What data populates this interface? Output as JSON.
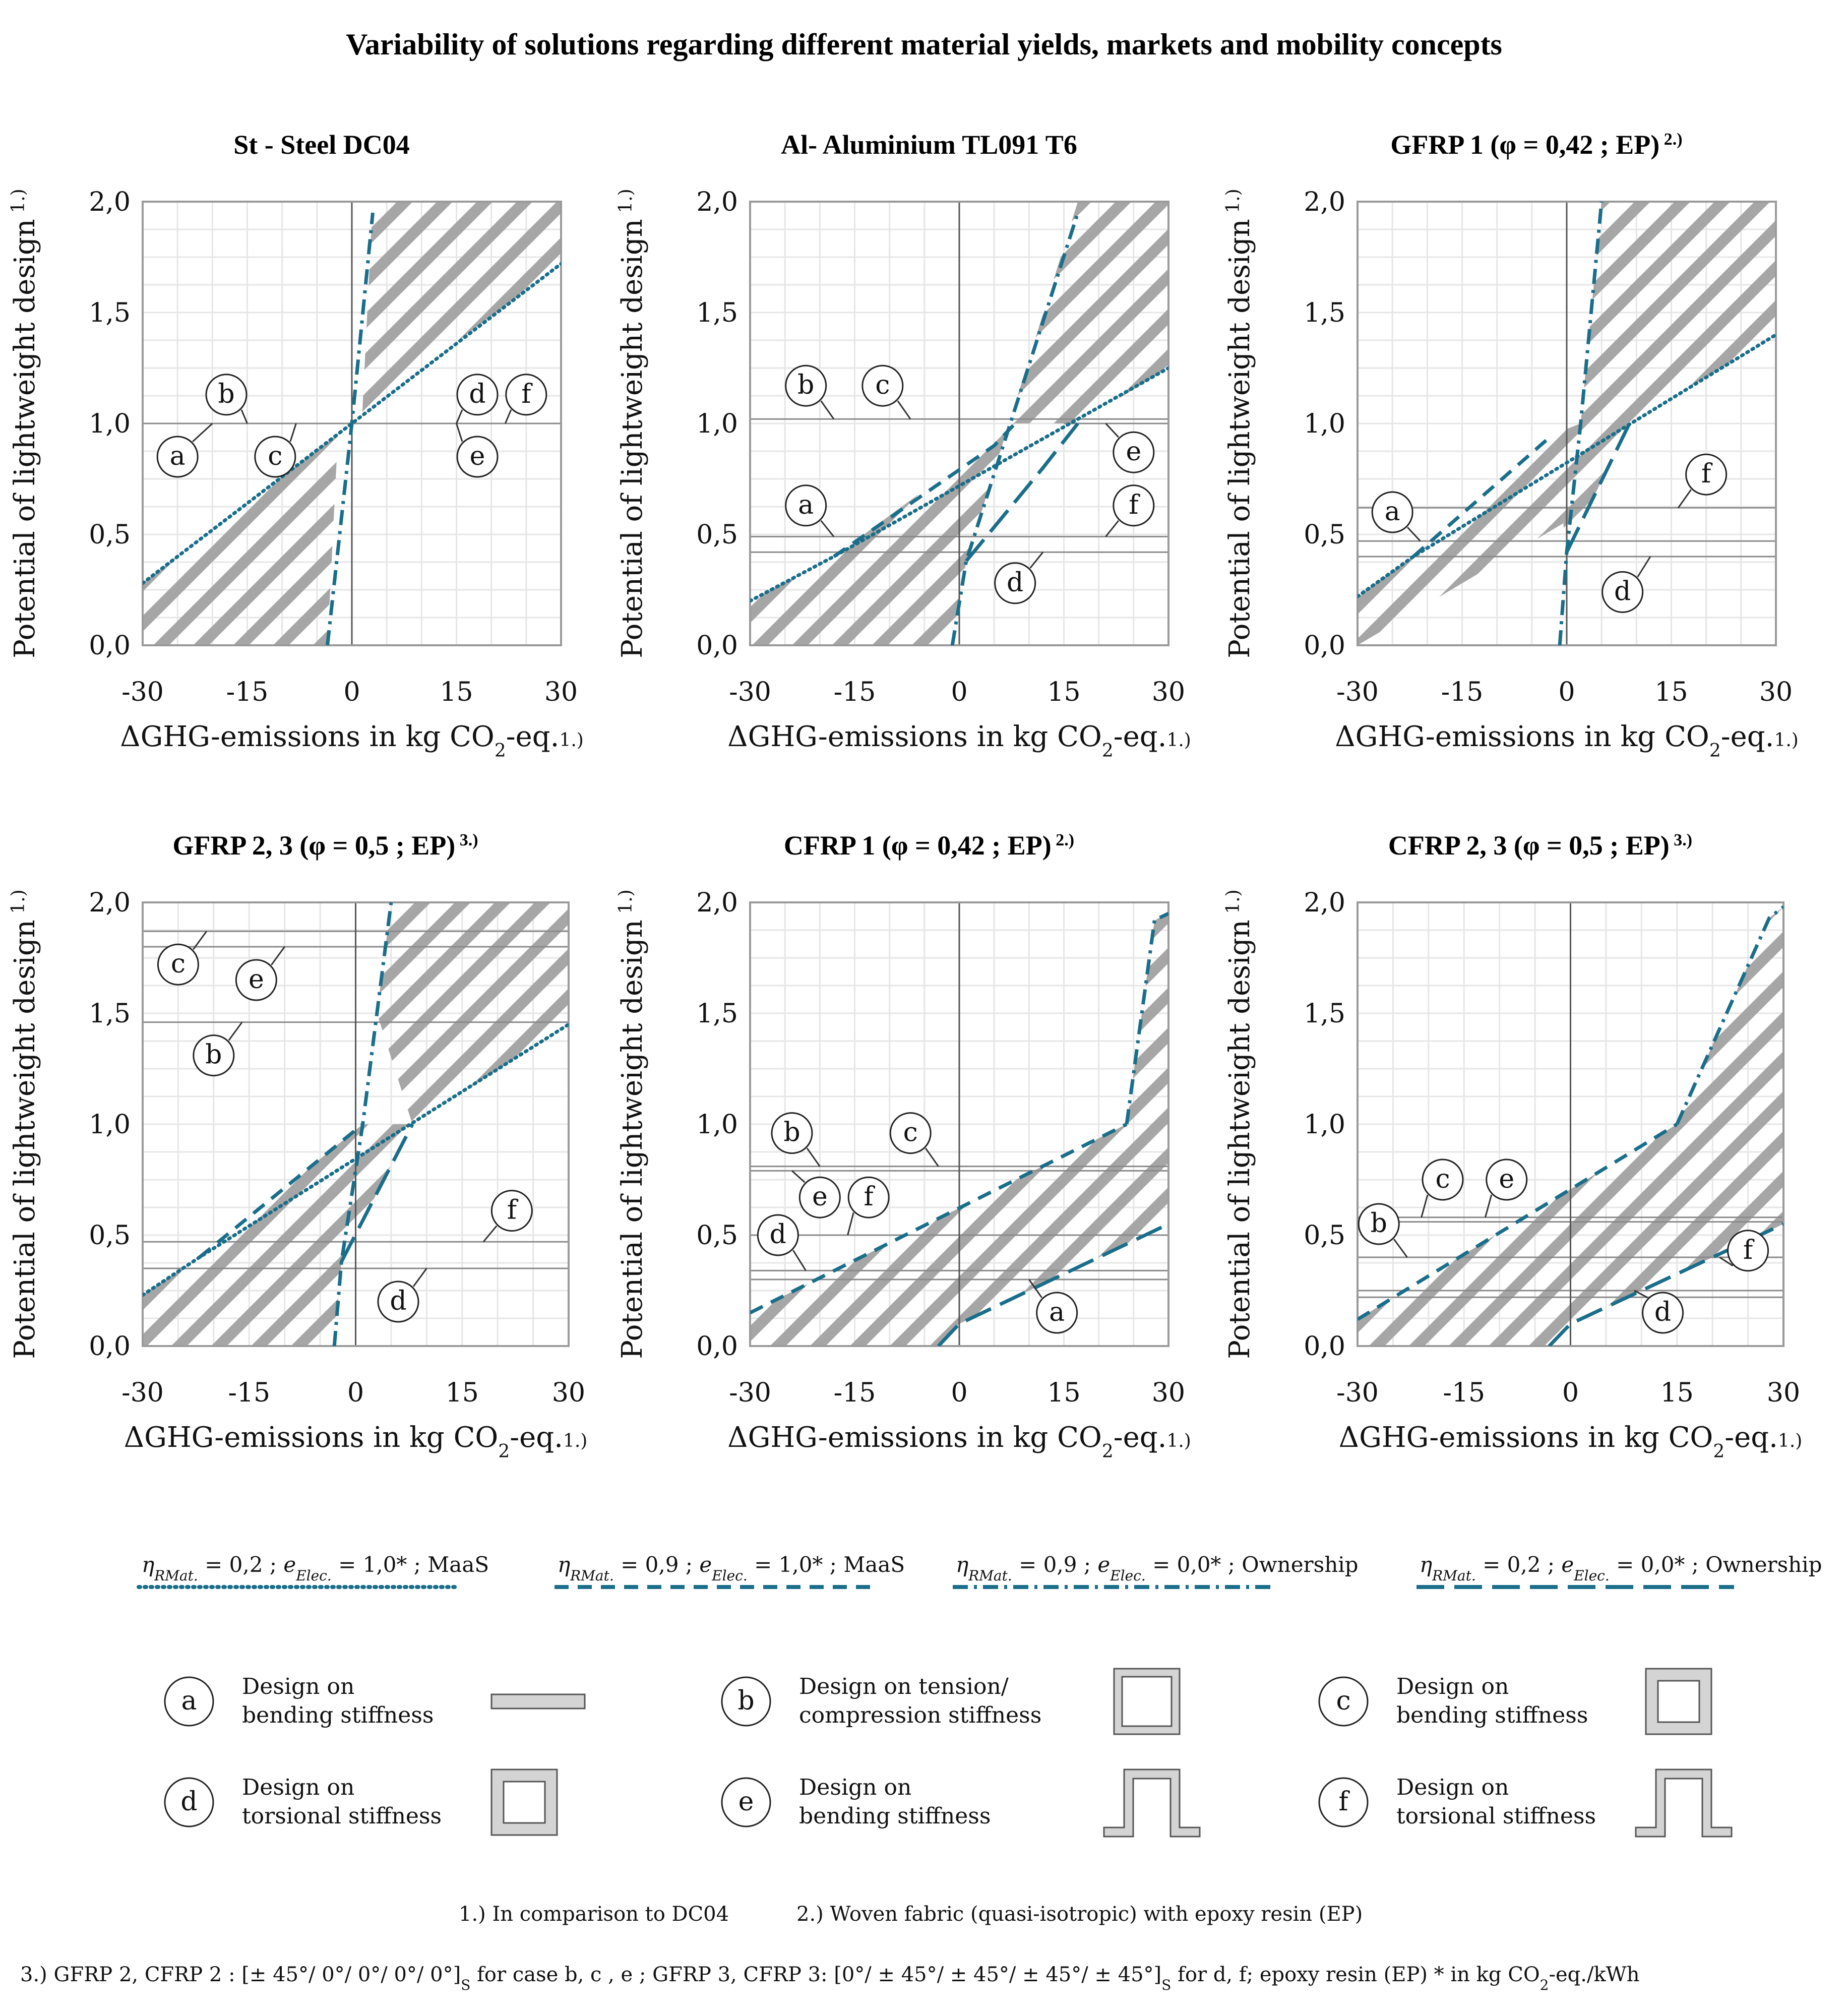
{
  "title": "Variability of solutions regarding different material yields, markets and mobility concepts",
  "axis": {
    "xlabel": "ΔGHG-emissions in kg CO",
    "xlabel_sub": "2",
    "xlabel_tail": "-eq.",
    "xlabel_sup": "1.)",
    "ylabel": "Potential of lightweight design",
    "ylabel_sup": "1.)",
    "xticks": [
      "-30",
      "-15",
      "0",
      "15",
      "30"
    ],
    "yticks": [
      "0,0",
      "0,5",
      "1,0",
      "1,5",
      "2,0"
    ]
  },
  "legend_lines": [
    {
      "eta": "η",
      "eta_sub": "RMat.",
      "mid": " = 0,2 ; ",
      "e": "e",
      "e_sub": "Elec.",
      "tail": " = 1,0* ; MaaS",
      "style": "dotted"
    },
    {
      "eta": "η",
      "eta_sub": "RMat.",
      "mid": " = 0,9 ; ",
      "e": "e",
      "e_sub": "Elec.",
      "tail": " = 1,0* ; MaaS",
      "style": "dashed"
    },
    {
      "eta": "η",
      "eta_sub": "RMat.",
      "mid": " = 0,9 ; ",
      "e": "e",
      "e_sub": "Elec.",
      "tail": " = 0,0* ; Ownership",
      "style": "dashdot"
    },
    {
      "eta": "η",
      "eta_sub": "RMat.",
      "mid": " = 0,2 ; ",
      "e": "e",
      "e_sub": "Elec.",
      "tail": " = 0,0* ; Ownership",
      "style": "longdash"
    }
  ],
  "designs": [
    {
      "key": "a",
      "line1": "Design on",
      "line2": "bending stiffness",
      "shape": "plate"
    },
    {
      "key": "b",
      "line1": "Design on tension/",
      "line2": "compression stiffness",
      "shape": "box-thin"
    },
    {
      "key": "c",
      "line1": "Design on",
      "line2": "bending stiffness",
      "shape": "box-thick"
    },
    {
      "key": "d",
      "line1": "Design on",
      "line2": "torsional stiffness",
      "shape": "box-thick"
    },
    {
      "key": "e",
      "line1": "Design on",
      "line2": "bending stiffness",
      "shape": "hat"
    },
    {
      "key": "f",
      "line1": "Design on",
      "line2": "torsional stiffness",
      "shape": "hat"
    }
  ],
  "footnotes": {
    "f1": "1.) In comparison to DC04",
    "f2": "2.) Woven fabric (quasi-isotropic) with epoxy resin (EP)",
    "f3a": "3.) GFRP 2, CFRP 2 : [± 45°/ 0°/ 0°/ 0°/ 0°]",
    "f3s1": "S",
    "f3b": " for case b, c , e ; GFRP 3, CFRP 3: [0°/ ± 45°/ ± 45°/ ± 45°/ ± 45°]",
    "f3s2": "S",
    "f3c": " for d, f; epoxy resin (EP)   * in  kg CO",
    "f3s3": "2",
    "f3d": "-eq./kWh"
  },
  "colors": {
    "teal": "#1a6e8a",
    "hatch": "#a9a9a9",
    "grid": "#e6e6e6",
    "frame": "#9a9a9a",
    "ref": "#8a8a8a"
  },
  "chart_data": [
    {
      "type": "line",
      "title": "St - Steel DC04",
      "title_sup": "",
      "xlim": [
        -30,
        30
      ],
      "ylim": [
        0,
        2
      ],
      "series": [
        {
          "name": "η RMat. = 0,2 ; e Elec. = 1,0* ; MaaS",
          "style": "dotted",
          "x": [
            -30,
            30
          ],
          "y": [
            0.28,
            1.72
          ]
        },
        {
          "name": "η RMat. = 0,9 ; e Elec. = 0,0* ; Ownership",
          "style": "dashdot",
          "x": [
            -3.5,
            0,
            3
          ],
          "y": [
            0.0,
            1.0,
            1.95
          ]
        }
      ],
      "hatch": [
        [
          [
            -30,
            0.28
          ],
          [
            -2,
            0.95
          ],
          [
            -3.5,
            0.0
          ],
          [
            -30,
            0.0
          ]
        ],
        [
          [
            1.5,
            1.05
          ],
          [
            30,
            1.72
          ],
          [
            30,
            2.0
          ],
          [
            3,
            2.0
          ]
        ]
      ],
      "refs": [
        {
          "y": 1.0,
          "x0": -30,
          "x1": 30
        }
      ],
      "labels": [
        {
          "key": "a",
          "x": -25,
          "y": 0.85,
          "tx": -20,
          "ty": 1.0
        },
        {
          "key": "b",
          "x": -18,
          "y": 1.13,
          "tx": -15,
          "ty": 1.0
        },
        {
          "key": "c",
          "x": -11,
          "y": 0.85,
          "tx": -8,
          "ty": 1.0
        },
        {
          "key": "d",
          "x": 18,
          "y": 1.13,
          "tx": 15,
          "ty": 1.0
        },
        {
          "key": "e",
          "x": 18,
          "y": 0.85,
          "tx": 15,
          "ty": 1.0
        },
        {
          "key": "f",
          "x": 25,
          "y": 1.13,
          "tx": 22,
          "ty": 1.0
        }
      ]
    },
    {
      "type": "line",
      "title": "Al- Aluminium TL091 T6",
      "title_sup": "",
      "xlim": [
        -30,
        30
      ],
      "ylim": [
        0,
        2
      ],
      "series": [
        {
          "name": "dotted",
          "style": "dotted",
          "x": [
            -30,
            -18,
            30
          ],
          "y": [
            0.2,
            0.4,
            1.25
          ]
        },
        {
          "name": "dashed",
          "style": "dashed",
          "x": [
            -18,
            5,
            8
          ],
          "y": [
            0.4,
            0.9,
            1.0
          ]
        },
        {
          "name": "dashdot",
          "style": "dashdot",
          "x": [
            -1,
            1,
            17
          ],
          "y": [
            0.0,
            0.38,
            1.95
          ]
        },
        {
          "name": "longdash",
          "style": "longdash",
          "x": [
            1,
            12,
            17
          ],
          "y": [
            0.38,
            0.8,
            1.0
          ]
        }
      ],
      "hatch": [
        [
          [
            -30,
            0.2
          ],
          [
            -18,
            0.4
          ],
          [
            8,
            1.0
          ],
          [
            17,
            1.0
          ],
          [
            30,
            1.25
          ],
          [
            30,
            2.0
          ],
          [
            17,
            2.0
          ],
          [
            1,
            0.38
          ],
          [
            -1,
            0.0
          ],
          [
            -30,
            0.0
          ]
        ]
      ],
      "refs": [
        {
          "y": 1.02,
          "x0": -30,
          "x1": 30
        },
        {
          "y": 1.0,
          "x0": 15,
          "x1": 30
        },
        {
          "y": 0.49,
          "x0": -30,
          "x1": 30
        },
        {
          "y": 0.42,
          "x0": -30,
          "x1": 30
        }
      ],
      "labels": [
        {
          "key": "b",
          "x": -22,
          "y": 1.17,
          "tx": -18,
          "ty": 1.02
        },
        {
          "key": "c",
          "x": -11,
          "y": 1.17,
          "tx": -7,
          "ty": 1.02
        },
        {
          "key": "e",
          "x": 25,
          "y": 0.87,
          "tx": 21,
          "ty": 1.0
        },
        {
          "key": "a",
          "x": -22,
          "y": 0.63,
          "tx": -18,
          "ty": 0.49
        },
        {
          "key": "f",
          "x": 25,
          "y": 0.63,
          "tx": 21,
          "ty": 0.49
        },
        {
          "key": "d",
          "x": 8,
          "y": 0.28,
          "tx": 12,
          "ty": 0.42
        }
      ]
    },
    {
      "type": "line",
      "title": "GFRP 1 (φ = 0,42 ; EP)",
      "title_sup": "2.)",
      "xlim": [
        -30,
        30
      ],
      "ylim": [
        0,
        2
      ],
      "series": [
        {
          "name": "dotted",
          "style": "dotted",
          "x": [
            -30,
            -22,
            30
          ],
          "y": [
            0.22,
            0.4,
            1.4
          ]
        },
        {
          "name": "dashed",
          "style": "dashed",
          "x": [
            -22,
            -2
          ],
          "y": [
            0.4,
            0.95
          ]
        },
        {
          "name": "dashdot",
          "style": "dashdot",
          "x": [
            -1,
            0,
            2,
            5
          ],
          "y": [
            0.0,
            0.42,
            1.0,
            2.0
          ]
        },
        {
          "name": "longdash",
          "style": "longdash",
          "x": [
            0,
            9
          ],
          "y": [
            0.42,
            1.0
          ]
        }
      ],
      "hatch": [
        [
          [
            -30,
            0.22
          ],
          [
            -22,
            0.4
          ],
          [
            -2,
            0.95
          ],
          [
            -0.5,
            0.55
          ],
          [
            -30,
            0.0
          ]
        ],
        [
          [
            2,
            1.0
          ],
          [
            9,
            1.0
          ],
          [
            30,
            1.4
          ],
          [
            30,
            2.0
          ],
          [
            5,
            2.0
          ]
        ],
        [
          [
            -2,
            0.95
          ],
          [
            2,
            1.0
          ],
          [
            9,
            1.0
          ],
          [
            0,
            0.42
          ]
        ]
      ],
      "refs": [
        {
          "y": 0.62,
          "x0": -30,
          "x1": 30
        },
        {
          "y": 0.47,
          "x0": -30,
          "x1": 30
        },
        {
          "y": 0.4,
          "x0": -30,
          "x1": 30
        }
      ],
      "labels": [
        {
          "key": "a",
          "x": -25,
          "y": 0.6,
          "tx": -21,
          "ty": 0.47
        },
        {
          "key": "f",
          "x": 20,
          "y": 0.77,
          "tx": 16,
          "ty": 0.62
        },
        {
          "key": "d",
          "x": 8,
          "y": 0.24,
          "tx": 12,
          "ty": 0.4
        }
      ]
    },
    {
      "type": "line",
      "title": "GFRP 2, 3 (φ = 0,5 ; EP)",
      "title_sup": "3.)",
      "xlim": [
        -30,
        30
      ],
      "ylim": [
        0,
        2
      ],
      "series": [
        {
          "name": "dotted",
          "style": "dotted",
          "x": [
            -30,
            -22,
            30
          ],
          "y": [
            0.23,
            0.4,
            1.45
          ]
        },
        {
          "name": "dashed",
          "style": "dashed",
          "x": [
            -22,
            1
          ],
          "y": [
            0.4,
            1.0
          ]
        },
        {
          "name": "dashdot",
          "style": "dashdot",
          "x": [
            -3,
            -2,
            1,
            5
          ],
          "y": [
            0.0,
            0.38,
            1.0,
            2.0
          ]
        },
        {
          "name": "longdash",
          "style": "longdash",
          "x": [
            -2,
            8
          ],
          "y": [
            0.38,
            1.0
          ]
        }
      ],
      "hatch": [
        [
          [
            -30,
            0.23
          ],
          [
            -22,
            0.4
          ],
          [
            1,
            1.0
          ],
          [
            8,
            1.0
          ],
          [
            -2,
            0.38
          ],
          [
            -3,
            0.0
          ],
          [
            -30,
            0.0
          ]
        ],
        [
          [
            3,
            1.5
          ],
          [
            8,
            1.0
          ],
          [
            30,
            1.45
          ],
          [
            30,
            2.0
          ],
          [
            5,
            2.0
          ]
        ]
      ],
      "refs": [
        {
          "y": 1.87,
          "x0": -30,
          "x1": 30
        },
        {
          "y": 1.8,
          "x0": -30,
          "x1": 30
        },
        {
          "y": 1.46,
          "x0": -30,
          "x1": 30
        },
        {
          "y": 0.47,
          "x0": -30,
          "x1": 30
        },
        {
          "y": 0.35,
          "x0": -30,
          "x1": 30
        }
      ],
      "labels": [
        {
          "key": "c",
          "x": -25,
          "y": 1.72,
          "tx": -21,
          "ty": 1.87
        },
        {
          "key": "e",
          "x": -14,
          "y": 1.65,
          "tx": -10,
          "ty": 1.8
        },
        {
          "key": "b",
          "x": -20,
          "y": 1.31,
          "tx": -16,
          "ty": 1.46
        },
        {
          "key": "f",
          "x": 22,
          "y": 0.61,
          "tx": 18,
          "ty": 0.47
        },
        {
          "key": "d",
          "x": 6,
          "y": 0.2,
          "tx": 10,
          "ty": 0.35
        }
      ]
    },
    {
      "type": "line",
      "title": "CFRP 1 (φ = 0,42 ; EP)",
      "title_sup": "2.)",
      "xlim": [
        -30,
        30
      ],
      "ylim": [
        0,
        2
      ],
      "series": [
        {
          "name": "dashed",
          "style": "dashed",
          "x": [
            -30,
            24
          ],
          "y": [
            0.15,
            1.0
          ]
        },
        {
          "name": "dashdot",
          "style": "dashdot",
          "x": [
            24,
            28,
            30
          ],
          "y": [
            1.0,
            1.92,
            1.95
          ]
        },
        {
          "name": "longdash",
          "style": "longdash",
          "x": [
            -3,
            0,
            30
          ],
          "y": [
            0.0,
            0.1,
            0.55
          ]
        }
      ],
      "hatch": [
        [
          [
            -30,
            0.15
          ],
          [
            24,
            1.0
          ],
          [
            28,
            1.92
          ],
          [
            30,
            1.95
          ],
          [
            30,
            0.55
          ],
          [
            0,
            0.1
          ],
          [
            -3,
            0.0
          ],
          [
            -30,
            0.0
          ]
        ]
      ],
      "refs": [
        {
          "y": 0.81,
          "x0": -30,
          "x1": 30
        },
        {
          "y": 0.79,
          "x0": -30,
          "x1": 30
        },
        {
          "y": 0.5,
          "x0": -30,
          "x1": 30
        },
        {
          "y": 0.34,
          "x0": -30,
          "x1": 30
        },
        {
          "y": 0.3,
          "x0": -30,
          "x1": 30
        }
      ],
      "labels": [
        {
          "key": "b",
          "x": -24,
          "y": 0.96,
          "tx": -20,
          "ty": 0.81
        },
        {
          "key": "c",
          "x": -7,
          "y": 0.96,
          "tx": -3,
          "ty": 0.81
        },
        {
          "key": "e",
          "x": -20,
          "y": 0.67,
          "tx": -24,
          "ty": 0.79
        },
        {
          "key": "f",
          "x": -13,
          "y": 0.67,
          "tx": -16,
          "ty": 0.5
        },
        {
          "key": "d",
          "x": -26,
          "y": 0.5,
          "tx": -22,
          "ty": 0.34
        },
        {
          "key": "a",
          "x": 14,
          "y": 0.15,
          "tx": 10,
          "ty": 0.3
        }
      ]
    },
    {
      "type": "line",
      "title": "CFRP 2, 3 (φ = 0,5 ; EP)",
      "title_sup": "3.)",
      "xlim": [
        -30,
        30
      ],
      "ylim": [
        0,
        2
      ],
      "series": [
        {
          "name": "dashed",
          "style": "dashed",
          "x": [
            -30,
            15
          ],
          "y": [
            0.12,
            1.0
          ]
        },
        {
          "name": "dashdot",
          "style": "dashdot",
          "x": [
            15,
            28,
            30
          ],
          "y": [
            1.0,
            1.93,
            1.98
          ]
        },
        {
          "name": "longdash",
          "style": "longdash",
          "x": [
            -3,
            0,
            30
          ],
          "y": [
            0.0,
            0.1,
            0.55
          ]
        }
      ],
      "hatch": [
        [
          [
            -30,
            0.12
          ],
          [
            15,
            1.0
          ],
          [
            28,
            1.93
          ],
          [
            30,
            1.98
          ],
          [
            30,
            0.55
          ],
          [
            0,
            0.1
          ],
          [
            -3,
            0.0
          ],
          [
            -30,
            0.0
          ]
        ]
      ],
      "refs": [
        {
          "y": 0.58,
          "x0": -30,
          "x1": 30
        },
        {
          "y": 0.56,
          "x0": -30,
          "x1": 30
        },
        {
          "y": 0.4,
          "x0": -30,
          "x1": 30
        },
        {
          "y": 0.25,
          "x0": -30,
          "x1": 30
        },
        {
          "y": 0.22,
          "x0": -30,
          "x1": 30
        }
      ],
      "labels": [
        {
          "key": "b",
          "x": -27,
          "y": 0.55,
          "tx": -23,
          "ty": 0.4
        },
        {
          "key": "c",
          "x": -18,
          "y": 0.75,
          "tx": -21,
          "ty": 0.58
        },
        {
          "key": "e",
          "x": -9,
          "y": 0.75,
          "tx": -12,
          "ty": 0.58
        },
        {
          "key": "f",
          "x": 25,
          "y": 0.43,
          "tx": 21,
          "ty": 0.4
        },
        {
          "key": "d",
          "x": 13,
          "y": 0.15,
          "tx": 9,
          "ty": 0.25
        }
      ]
    }
  ]
}
